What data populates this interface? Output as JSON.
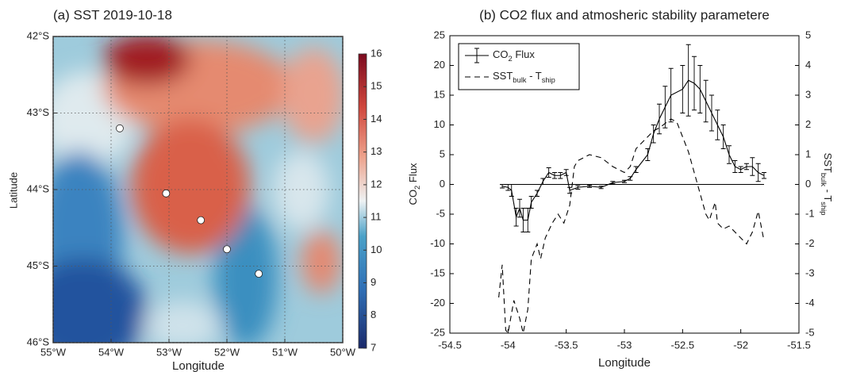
{
  "chart_data": [
    {
      "type": "map",
      "title": "(a) SST 2019-10-18",
      "xlabel": "Longitude",
      "ylabel": "Latitude",
      "xlim": [
        -55,
        -50
      ],
      "ylim": [
        -46,
        -42
      ],
      "xticks": [
        {
          "value": -55,
          "label": "55°W"
        },
        {
          "value": -54,
          "label": "54°W"
        },
        {
          "value": -53,
          "label": "53°W"
        },
        {
          "value": -52,
          "label": "52°W"
        },
        {
          "value": -51,
          "label": "51°W"
        },
        {
          "value": -50,
          "label": "50°W"
        }
      ],
      "yticks": [
        {
          "value": -42,
          "label": "42°S"
        },
        {
          "value": -43,
          "label": "43°S"
        },
        {
          "value": -44,
          "label": "44°S"
        },
        {
          "value": -45,
          "label": "45°S"
        },
        {
          "value": -46,
          "label": "46°S"
        }
      ],
      "grid": true,
      "colorbar": {
        "lim": [
          7,
          16
        ],
        "ticks": [
          7,
          8,
          9,
          10,
          11,
          12,
          13,
          14,
          15,
          16
        ]
      },
      "points": {
        "x": [
          -53.85,
          -53.05,
          -52.45,
          -52.0,
          -51.45
        ],
        "y": [
          -43.2,
          -44.05,
          -44.4,
          -44.78,
          -45.1
        ],
        "color": "#ffffff"
      }
    },
    {
      "type": "line",
      "title": "(b) CO2 flux and atmosheric stability parametere",
      "xlabel": "Longitude",
      "ylabel": [
        "CO",
        "2",
        " Flux"
      ],
      "y2label": [
        "SST",
        "bulk",
        " - T",
        "ship"
      ],
      "xlim": [
        -54.5,
        -51.5
      ],
      "ylim": [
        -25,
        25
      ],
      "y2lim": [
        -5,
        5
      ],
      "xticks": [
        -54.5,
        -54,
        -53.5,
        -53,
        -52.5,
        -52,
        -51.5
      ],
      "yticks": [
        -25,
        -20,
        -15,
        -10,
        -5,
        0,
        5,
        10,
        15,
        20,
        25
      ],
      "y2ticks": [
        -5,
        -4,
        -3,
        -2,
        -1,
        0,
        1,
        2,
        3,
        4,
        5
      ],
      "hline": 0,
      "legend": "upper left",
      "series": [
        {
          "name": [
            "CO",
            "2",
            " Flux"
          ],
          "color": "#000000",
          "style": "solid",
          "x": [
            -54.05,
            -54.0,
            -53.97,
            -53.93,
            -53.9,
            -53.87,
            -53.83,
            -53.8,
            -53.75,
            -53.7,
            -53.65,
            -53.6,
            -53.55,
            -53.5,
            -53.47,
            -53.4,
            -53.3,
            -53.2,
            -53.1,
            -53.0,
            -52.95,
            -52.9,
            -52.8,
            -52.75,
            -52.7,
            -52.65,
            -52.6,
            -52.5,
            -52.45,
            -52.4,
            -52.35,
            -52.3,
            -52.25,
            -52.2,
            -52.15,
            -52.1,
            -52.05,
            -52.0,
            -51.95,
            -51.9,
            -51.85,
            -51.8
          ],
          "values": [
            -0.3,
            -0.5,
            -1,
            -5.5,
            -4,
            -6,
            -6,
            -3,
            -1.5,
            0.5,
            2,
            1.5,
            1.5,
            2,
            -1,
            -0.5,
            -0.3,
            -0.5,
            0.3,
            0.5,
            1,
            2.5,
            5,
            8.5,
            11,
            13,
            15,
            16,
            17.5,
            17,
            16,
            14,
            12,
            10,
            8,
            5,
            3,
            2.5,
            3,
            3,
            2,
            1.5
          ],
          "errors": [
            0.3,
            0.5,
            1,
            1.5,
            1.5,
            2,
            2,
            1,
            0.5,
            0.5,
            0.8,
            0.5,
            0.5,
            0.5,
            0.5,
            0.3,
            0.2,
            0.2,
            0.2,
            0.2,
            0.3,
            0.5,
            1,
            1.5,
            2.5,
            3.5,
            4.5,
            4,
            6,
            4.5,
            4,
            3.5,
            3,
            2.5,
            2,
            1.5,
            1,
            0.5,
            0.5,
            1.5,
            1.5,
            0.5
          ]
        },
        {
          "name": [
            "SST",
            "bulk",
            " - T",
            "ship"
          ],
          "color": "#000000",
          "style": "dashed",
          "axis": "y2",
          "x": [
            -54.08,
            -54.05,
            -54.02,
            -54.0,
            -53.95,
            -53.9,
            -53.87,
            -53.83,
            -53.8,
            -53.75,
            -53.72,
            -53.68,
            -53.62,
            -53.57,
            -53.52,
            -53.47,
            -53.43,
            -53.4,
            -53.3,
            -53.2,
            -53.1,
            -53.0,
            -52.95,
            -52.9,
            -52.8,
            -52.75,
            -52.7,
            -52.6,
            -52.55,
            -52.5,
            -52.45,
            -52.4,
            -52.35,
            -52.3,
            -52.27,
            -52.22,
            -52.2,
            -52.15,
            -52.1,
            -52.05,
            -52.0,
            -51.95,
            -51.9,
            -51.85,
            -51.8
          ],
          "values": [
            -3.8,
            -2.7,
            -4.9,
            -5,
            -3.9,
            -4.5,
            -5,
            -4.2,
            -2.5,
            -2.0,
            -2.5,
            -1.8,
            -1.3,
            -1.0,
            -1.3,
            -0.7,
            0.6,
            0.8,
            1.0,
            0.9,
            0.6,
            0.4,
            0.6,
            1.2,
            1.6,
            1.8,
            1.9,
            2.2,
            2.1,
            1.6,
            1.1,
            0.4,
            -0.3,
            -1.0,
            -1.2,
            -0.6,
            -1.3,
            -1.5,
            -1.4,
            -1.6,
            -1.8,
            -2.0,
            -1.6,
            -0.9,
            -1.9
          ]
        }
      ]
    }
  ]
}
